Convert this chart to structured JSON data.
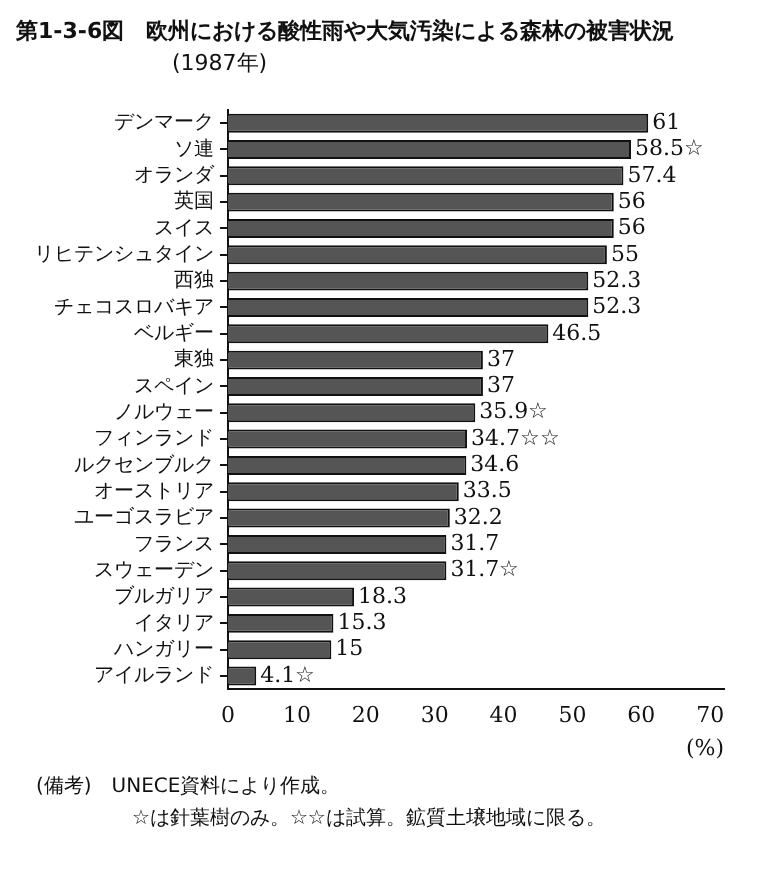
{
  "chart_data": {
    "type": "bar",
    "orientation": "horizontal",
    "title": "第1-3-6図　欧州における酸性雨や大気汚染による森林の被害状況",
    "subtitle": "(1987年)",
    "categories": [
      "デンマーク",
      "ソ連",
      "オランダ",
      "英国",
      "スイス",
      "リヒテンシュタイン",
      "西独",
      "チェコスロバキア",
      "ベルギー",
      "東独",
      "スペイン",
      "ノルウェー",
      "フィンランド",
      "ルクセンブルク",
      "オーストリア",
      "ユーゴスラビア",
      "フランス",
      "スウェーデン",
      "ブルガリア",
      "イタリア",
      "ハンガリー",
      "アイルランド"
    ],
    "values": [
      61,
      58.5,
      57.4,
      56,
      56,
      55,
      52.3,
      52.3,
      46.5,
      37,
      37,
      35.9,
      34.7,
      34.6,
      33.5,
      32.2,
      31.7,
      31.7,
      18.3,
      15.3,
      15,
      4.1
    ],
    "value_labels": [
      "61",
      "58.5☆",
      "57.4",
      "56",
      "56",
      "55",
      "52.3",
      "52.3",
      "46.5",
      "37",
      "37",
      "35.9☆",
      "34.7☆☆",
      "34.6",
      "33.5",
      "32.2",
      "31.7",
      "31.7☆",
      "18.3",
      "15.3",
      "15",
      "4.1☆"
    ],
    "color": "#555555",
    "xlim": [
      0,
      72
    ],
    "xticks": [
      0,
      10,
      20,
      30,
      40,
      50,
      60,
      70
    ],
    "xlabel": "(%)",
    "grid": false,
    "legend": false,
    "annotations": [
      "(備考)　UNECE資料により作成。",
      "☆は針葉樹のみ。☆☆は試算。鉱質土壌地域に限る。"
    ]
  }
}
